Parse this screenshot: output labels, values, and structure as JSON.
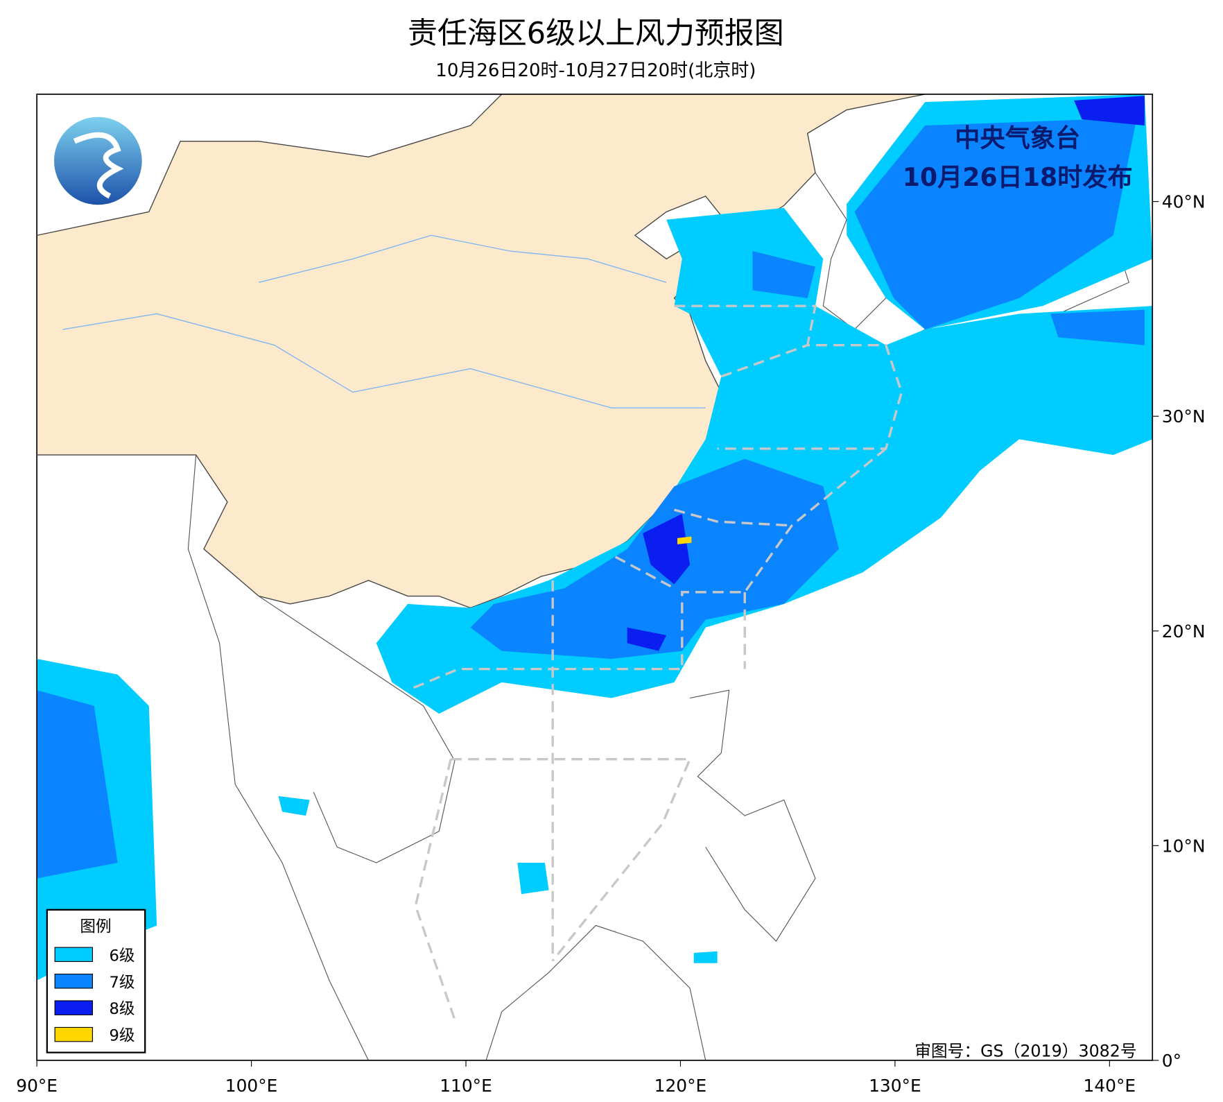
{
  "map": {
    "title": "责任海区6级以上风力预报图",
    "subtitle": "10月26日20时-10月27日20时(北京时)",
    "issuer": "中央气象台",
    "issue_time": "10月26日18时发布",
    "review_number": "审图号：GS（2019）3082号",
    "xlim": [
      90,
      142
    ],
    "ylim": [
      0,
      45
    ],
    "xticks": [
      {
        "value": 90,
        "label": "90°E"
      },
      {
        "value": 100,
        "label": "100°E"
      },
      {
        "value": 110,
        "label": "110°E"
      },
      {
        "value": 120,
        "label": "120°E"
      },
      {
        "value": 130,
        "label": "130°E"
      },
      {
        "value": 140,
        "label": "140°E"
      }
    ],
    "yticks": [
      {
        "value": 0,
        "label": "0°"
      },
      {
        "value": 10,
        "label": "10°N"
      },
      {
        "value": 20,
        "label": "20°N"
      },
      {
        "value": 30,
        "label": "30°N"
      },
      {
        "value": 40,
        "label": "40°N"
      }
    ],
    "legend": {
      "title": "图例",
      "entries": [
        {
          "label": "6级",
          "color": "#00ccff"
        },
        {
          "label": "7级",
          "color": "#0a84ff"
        },
        {
          "label": "8级",
          "color": "#0a1ef0"
        },
        {
          "label": "9级",
          "color": "#ffd700"
        }
      ]
    }
  }
}
